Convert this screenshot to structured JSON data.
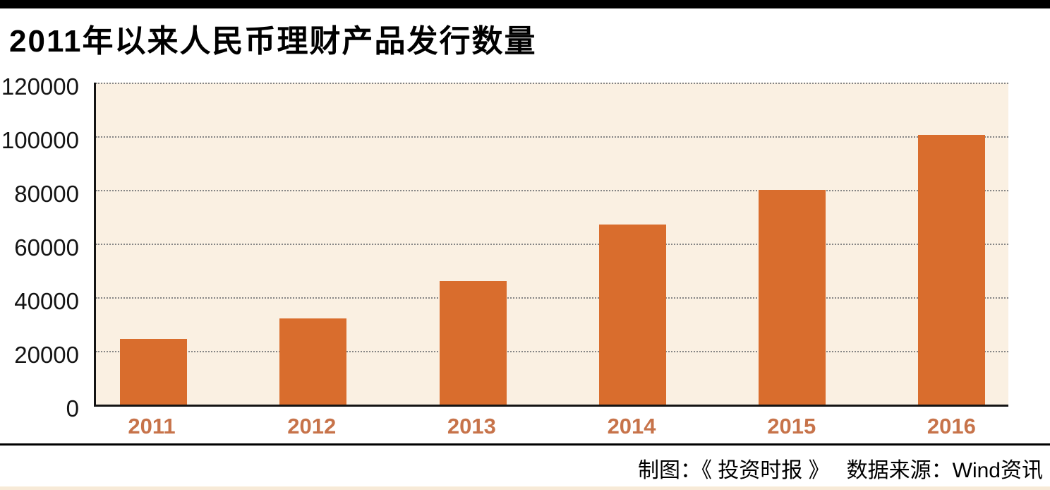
{
  "page": {
    "title": "2011年以来人民币理财产品发行数量",
    "credit_maker": "制图：《 投资时报 》",
    "credit_source": "数据来源：Wind资讯"
  },
  "chart_data": {
    "type": "bar",
    "title": "2011年以来人民币理财产品发行数量",
    "categories": [
      "2011",
      "2012",
      "2013",
      "2014",
      "2015",
      "2016"
    ],
    "values": [
      24500,
      32000,
      46000,
      67000,
      80000,
      100500
    ],
    "xlabel": "",
    "ylabel": "",
    "ylim": [
      0,
      120000
    ],
    "yticks": [
      0,
      20000,
      40000,
      60000,
      80000,
      100000,
      120000
    ],
    "ytick_labels": [
      "0",
      "20000",
      "40000",
      "60000",
      "80000",
      "100000",
      "120000"
    ],
    "grid": "horizontal-dotted",
    "legend": "none",
    "bar_color": "#d96d2d",
    "plot_bg": "#faf0e2",
    "xtick_color": "#c7734a",
    "source_note": "数据来源：Wind资讯",
    "credit_note": "制图：《 投资时报 》"
  }
}
